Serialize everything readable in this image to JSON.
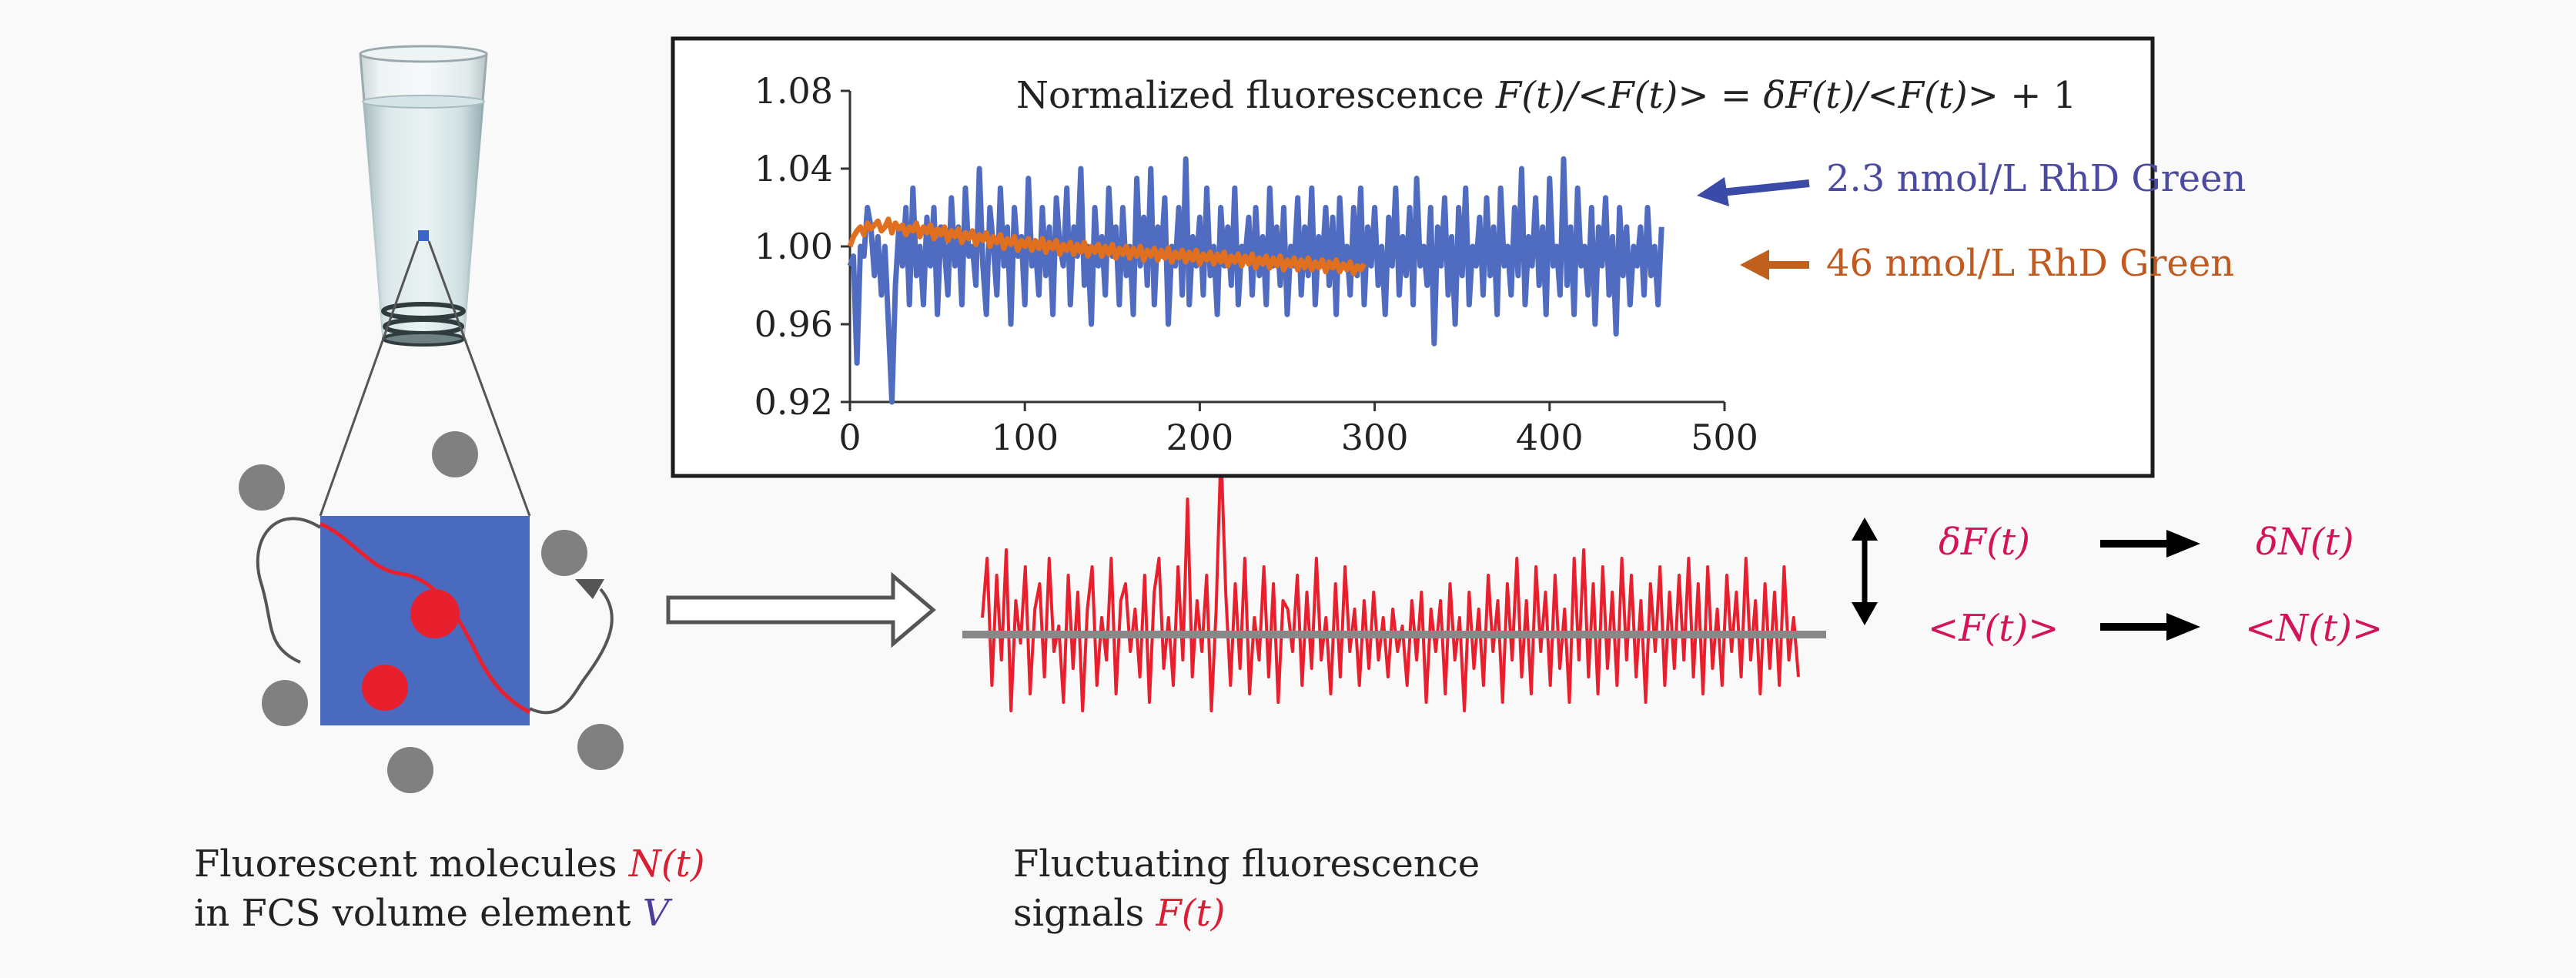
{
  "colors": {
    "background": "#f9f9f9",
    "series_dilute": "#4f6cc0",
    "series_concentrated": "#e0701f",
    "signal": "#e8202e",
    "volume_element": "#4a6ac0",
    "molecule_inside": "#e8202e",
    "molecule_outside": "#7f7f7f",
    "magenta_text": "#d4145a",
    "dilute_label_text": "#4a4aa0",
    "conc_label_text": "#c05a20"
  },
  "chart_data": {
    "type": "line",
    "title_parts": {
      "prefix": "Normalized fluorescence ",
      "eq1": "F(t)/<F(t)>",
      "mid": " = ",
      "eq2": "δF(t)/<F(t)>",
      "suffix": " + 1"
    },
    "xlim": [
      0,
      500
    ],
    "ylim": [
      0.92,
      1.08
    ],
    "x_ticks": [
      0,
      100,
      200,
      300,
      400,
      500
    ],
    "y_ticks": [
      "1.08",
      "1.04",
      "1.00",
      "0.96",
      "0.92"
    ],
    "x_step": 2,
    "series": [
      {
        "name": "2.3 nmol/L RhD Green",
        "values": [
          0.99,
          0.995,
          0.94,
          1.0,
          0.995,
          1.02,
          1.01,
          0.985,
          1.005,
          0.975,
          1.0,
          0.96,
          0.92,
          0.98,
          1.01,
          0.99,
          1.02,
          0.97,
          1.03,
          0.985,
          1.0,
          0.97,
          1.015,
          0.99,
          1.02,
          0.965,
          1.01,
          1.0,
          0.975,
          1.025,
          0.99,
          1.01,
          0.97,
          1.03,
          0.995,
          1.0,
          0.98,
          1.04,
          0.99,
          0.965,
          1.02,
          1.0,
          0.975,
          1.03,
          0.99,
          1.01,
          0.96,
          1.02,
          0.995,
          1.005,
          0.97,
          1.035,
          0.99,
          1.0,
          0.975,
          1.02,
          0.985,
          1.01,
          0.965,
          1.025,
          1.0,
          0.99,
          1.03,
          0.97,
          1.01,
          0.995,
          1.04,
          0.98,
          1.0,
          0.96,
          1.02,
          0.99,
          1.005,
          0.975,
          1.03,
          0.995,
          1.01,
          0.97,
          1.02,
          0.985,
          1.0,
          0.965,
          1.035,
          0.99,
          1.015,
          0.98,
          1.04,
          0.97,
          1.01,
          0.995,
          1.025,
          0.96,
          1.0,
          0.99,
          1.02,
          0.975,
          1.045,
          0.97,
          1.005,
          0.99,
          1.015,
          0.975,
          1.03,
          0.985,
          1.0,
          0.965,
          1.02,
          0.99,
          1.01,
          0.98,
          1.03,
          0.97,
          1.0,
          0.995,
          1.015,
          0.975,
          1.02,
          0.985,
          1.005,
          0.97,
          1.03,
          0.99,
          1.01,
          0.98,
          1.02,
          0.965,
          1.0,
          0.99,
          1.025,
          0.975,
          1.01,
          0.985,
          1.03,
          0.97,
          1.005,
          0.99,
          1.02,
          0.98,
          1.015,
          0.965,
          1.025,
          0.99,
          1.0,
          0.975,
          1.02,
          0.985,
          1.03,
          0.97,
          1.01,
          0.99,
          1.02,
          0.98,
          1.0,
          0.965,
          1.015,
          0.99,
          1.03,
          0.975,
          1.005,
          0.985,
          1.02,
          0.97,
          1.035,
          0.99,
          1.0,
          0.98,
          1.02,
          0.95,
          1.01,
          0.99,
          1.025,
          0.975,
          1.005,
          0.96,
          1.02,
          0.985,
          1.03,
          0.97,
          1.0,
          0.99,
          1.015,
          0.975,
          1.025,
          0.985,
          1.01,
          0.965,
          1.03,
          0.99,
          1.0,
          0.975,
          1.02,
          0.985,
          1.04,
          0.97,
          1.005,
          0.99,
          1.025,
          0.98,
          1.01,
          0.965,
          1.035,
          0.99,
          1.0,
          0.975,
          1.045,
          0.98,
          1.01,
          0.965,
          1.03,
          0.99,
          1.0,
          0.975,
          1.02,
          0.96,
          1.01,
          0.99,
          1.025,
          0.975,
          1.005,
          0.955,
          1.02,
          0.985,
          1.01,
          0.97,
          1.0,
          0.99,
          1.01,
          0.975,
          1.02,
          0.985,
          1.0,
          0.97,
          1.01
        ]
      },
      {
        "name": "46 nmol/L RhD Green",
        "values": [
          1.0,
          1.005,
          1.008,
          1.01,
          1.006,
          1.012,
          1.009,
          1.011,
          1.013,
          1.008,
          1.01,
          1.014,
          1.007,
          1.012,
          1.009,
          1.011,
          1.006,
          1.01,
          1.008,
          1.012,
          1.005,
          1.01,
          1.007,
          1.011,
          1.004,
          1.009,
          1.006,
          1.01,
          1.003,
          1.008,
          1.005,
          1.009,
          1.002,
          1.007,
          1.004,
          1.008,
          1.001,
          1.006,
          1.003,
          1.007,
          1.0,
          1.005,
          1.002,
          1.006,
          0.999,
          1.004,
          1.001,
          1.005,
          0.998,
          1.003,
          1.0,
          1.004,
          0.998,
          1.003,
          0.999,
          1.004,
          0.997,
          1.002,
          0.999,
          1.003,
          0.996,
          1.001,
          0.998,
          1.002,
          0.996,
          1.001,
          0.997,
          1.002,
          0.995,
          1.0,
          0.997,
          1.001,
          0.995,
          1.0,
          0.996,
          1.001,
          0.994,
          0.999,
          0.996,
          1.0,
          0.994,
          0.999,
          0.995,
          1.0,
          0.993,
          0.998,
          0.995,
          0.999,
          0.993,
          0.998,
          0.994,
          0.999,
          0.992,
          0.997,
          0.994,
          0.998,
          0.992,
          0.997,
          0.993,
          0.998,
          0.991,
          0.996,
          0.993,
          0.997,
          0.991,
          0.996,
          0.992,
          0.997,
          0.99,
          0.995,
          0.992,
          0.996,
          0.99,
          0.995,
          0.991,
          0.996,
          0.989,
          0.994,
          0.991,
          0.995,
          0.989,
          0.994,
          0.99,
          0.995,
          0.988,
          0.993,
          0.99,
          0.994,
          0.988,
          0.993,
          0.989,
          0.994,
          0.988,
          0.992,
          0.989,
          0.993,
          0.987,
          0.992,
          0.989,
          0.993,
          0.987,
          0.991,
          0.988,
          0.992,
          0.986,
          0.99,
          0.988,
          0.991
        ]
      }
    ]
  },
  "diagram": {
    "left_caption_line1": "Fluorescent molecules ",
    "left_caption_var1": "N(t)",
    "left_caption_line2": "in FCS volume element ",
    "left_caption_var2": "V",
    "signal_caption_line1": "Fluctuating  fluorescence",
    "signal_caption_line2": "signals ",
    "signal_caption_var": "F(t)",
    "relations": [
      {
        "left": "δF(t)",
        "right": "δN(t)"
      },
      {
        "left": "<F(t)>",
        "right": "<N(t)>"
      }
    ],
    "signal_values": [
      0.2,
      0.9,
      -0.6,
      0.7,
      -0.3,
      1.0,
      -0.9,
      0.4,
      -0.1,
      0.8,
      -0.7,
      0.3,
      0.6,
      -0.5,
      0.9,
      -0.2,
      0.1,
      -0.8,
      0.7,
      -0.4,
      0.5,
      -0.9,
      0.3,
      0.8,
      -0.6,
      0.2,
      -0.3,
      0.9,
      -0.7,
      0.4,
      0.6,
      -0.2,
      0.3,
      -0.5,
      0.7,
      -0.8,
      0.5,
      0.9,
      -0.4,
      0.2,
      -0.6,
      0.8,
      -0.3,
      1.6,
      -0.5,
      0.4,
      -0.2,
      0.7,
      -0.9,
      0.3,
      2.2,
      0.5,
      -0.6,
      0.6,
      -0.4,
      0.9,
      -0.7,
      0.2,
      -0.3,
      0.8,
      -0.5,
      0.6,
      -0.8,
      0.4,
      0.3,
      -0.2,
      0.7,
      -0.6,
      0.5,
      -0.4,
      0.9,
      -0.3,
      0.2,
      -0.7,
      0.6,
      -0.5,
      0.8,
      -0.2,
      0.3,
      -0.6,
      0.4,
      -0.4,
      0.5,
      -0.3,
      0.2,
      -0.5,
      0.3,
      -0.2,
      0.1,
      -0.6,
      0.4,
      -0.3,
      0.5,
      -0.8,
      0.3,
      -0.2,
      0.4,
      -0.7,
      0.6,
      -0.3,
      0.2,
      -0.9,
      0.5,
      -0.4,
      0.3,
      -0.6,
      0.7,
      -0.2,
      0.4,
      -0.8,
      0.6,
      -0.3,
      0.9,
      -0.5,
      0.4,
      -0.7,
      0.8,
      -0.2,
      0.5,
      -0.6,
      0.7,
      -0.4,
      0.3,
      -0.8,
      0.9,
      -0.3,
      1.0,
      -0.5,
      0.6,
      -0.7,
      0.8,
      -0.4,
      0.5,
      -0.6,
      0.9,
      -0.3,
      0.7,
      -0.5,
      0.4,
      -0.8,
      0.6,
      -0.2,
      0.8,
      -0.6,
      0.5,
      -0.4,
      0.7,
      -0.3,
      0.9,
      -0.5,
      0.6,
      -0.7,
      0.8,
      -0.4,
      0.3,
      -0.6,
      0.7,
      -0.2,
      0.5,
      -0.5,
      0.9,
      -0.3,
      0.4,
      -0.7,
      0.6,
      -0.4,
      0.5,
      -0.6,
      0.8,
      -0.3,
      0.2,
      -0.5
    ]
  }
}
